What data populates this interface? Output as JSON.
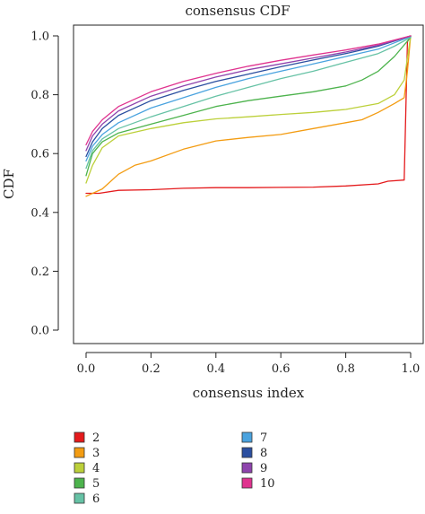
{
  "chart_data": {
    "type": "line",
    "title": "consensus CDF",
    "xlabel": "consensus index",
    "ylabel": "CDF",
    "xlim": [
      0,
      1
    ],
    "ylim": [
      0,
      1
    ],
    "x_ticks": [
      "0.0",
      "0.2",
      "0.4",
      "0.6",
      "0.8",
      "1.0"
    ],
    "y_ticks": [
      "0.0",
      "0.2",
      "0.4",
      "0.6",
      "0.8",
      "1.0"
    ],
    "grid": false,
    "legend_position": "bottom",
    "series": [
      {
        "name": "2",
        "color": "#e41a1c",
        "points": [
          [
            0.0,
            0.465
          ],
          [
            0.04,
            0.465
          ],
          [
            0.1,
            0.475
          ],
          [
            0.2,
            0.477
          ],
          [
            0.3,
            0.482
          ],
          [
            0.4,
            0.484
          ],
          [
            0.5,
            0.484
          ],
          [
            0.6,
            0.485
          ],
          [
            0.7,
            0.486
          ],
          [
            0.8,
            0.49
          ],
          [
            0.9,
            0.497
          ],
          [
            0.93,
            0.506
          ],
          [
            0.98,
            0.51
          ],
          [
            0.99,
            0.98
          ],
          [
            1.0,
            1.0
          ]
        ]
      },
      {
        "name": "3",
        "color": "#f39c12",
        "points": [
          [
            0.0,
            0.455
          ],
          [
            0.05,
            0.48
          ],
          [
            0.1,
            0.53
          ],
          [
            0.15,
            0.56
          ],
          [
            0.2,
            0.575
          ],
          [
            0.3,
            0.615
          ],
          [
            0.4,
            0.643
          ],
          [
            0.5,
            0.655
          ],
          [
            0.6,
            0.665
          ],
          [
            0.7,
            0.685
          ],
          [
            0.8,
            0.705
          ],
          [
            0.85,
            0.715
          ],
          [
            0.9,
            0.74
          ],
          [
            0.95,
            0.77
          ],
          [
            0.98,
            0.79
          ],
          [
            0.99,
            0.88
          ],
          [
            1.0,
            1.0
          ]
        ]
      },
      {
        "name": "4",
        "color": "#bcd03a",
        "points": [
          [
            0.0,
            0.5
          ],
          [
            0.02,
            0.56
          ],
          [
            0.05,
            0.62
          ],
          [
            0.1,
            0.66
          ],
          [
            0.2,
            0.685
          ],
          [
            0.3,
            0.705
          ],
          [
            0.4,
            0.718
          ],
          [
            0.5,
            0.725
          ],
          [
            0.6,
            0.733
          ],
          [
            0.7,
            0.74
          ],
          [
            0.8,
            0.75
          ],
          [
            0.9,
            0.77
          ],
          [
            0.95,
            0.8
          ],
          [
            0.98,
            0.85
          ],
          [
            1.0,
            1.0
          ]
        ]
      },
      {
        "name": "5",
        "color": "#4db34d",
        "points": [
          [
            0.0,
            0.525
          ],
          [
            0.02,
            0.6
          ],
          [
            0.05,
            0.64
          ],
          [
            0.1,
            0.67
          ],
          [
            0.2,
            0.7
          ],
          [
            0.3,
            0.73
          ],
          [
            0.4,
            0.76
          ],
          [
            0.5,
            0.78
          ],
          [
            0.6,
            0.795
          ],
          [
            0.7,
            0.81
          ],
          [
            0.8,
            0.83
          ],
          [
            0.85,
            0.85
          ],
          [
            0.9,
            0.88
          ],
          [
            0.95,
            0.93
          ],
          [
            1.0,
            0.995
          ]
        ]
      },
      {
        "name": "6",
        "color": "#66c2a5",
        "points": [
          [
            0.0,
            0.55
          ],
          [
            0.02,
            0.61
          ],
          [
            0.05,
            0.65
          ],
          [
            0.1,
            0.685
          ],
          [
            0.2,
            0.725
          ],
          [
            0.3,
            0.76
          ],
          [
            0.4,
            0.795
          ],
          [
            0.5,
            0.825
          ],
          [
            0.6,
            0.855
          ],
          [
            0.7,
            0.88
          ],
          [
            0.8,
            0.91
          ],
          [
            0.9,
            0.94
          ],
          [
            0.95,
            0.965
          ],
          [
            1.0,
            0.995
          ]
        ]
      },
      {
        "name": "7",
        "color": "#4aa3df",
        "points": [
          [
            0.0,
            0.575
          ],
          [
            0.02,
            0.625
          ],
          [
            0.05,
            0.665
          ],
          [
            0.1,
            0.705
          ],
          [
            0.2,
            0.755
          ],
          [
            0.3,
            0.79
          ],
          [
            0.4,
            0.825
          ],
          [
            0.5,
            0.855
          ],
          [
            0.6,
            0.88
          ],
          [
            0.7,
            0.905
          ],
          [
            0.8,
            0.93
          ],
          [
            0.9,
            0.955
          ],
          [
            1.0,
            0.998
          ]
        ]
      },
      {
        "name": "8",
        "color": "#2b4fa0",
        "points": [
          [
            0.0,
            0.59
          ],
          [
            0.02,
            0.64
          ],
          [
            0.05,
            0.685
          ],
          [
            0.1,
            0.73
          ],
          [
            0.2,
            0.78
          ],
          [
            0.3,
            0.815
          ],
          [
            0.4,
            0.845
          ],
          [
            0.5,
            0.87
          ],
          [
            0.6,
            0.895
          ],
          [
            0.7,
            0.918
          ],
          [
            0.8,
            0.94
          ],
          [
            0.9,
            0.965
          ],
          [
            1.0,
            1.0
          ]
        ]
      },
      {
        "name": "9",
        "color": "#8e44ad",
        "points": [
          [
            0.0,
            0.61
          ],
          [
            0.02,
            0.66
          ],
          [
            0.05,
            0.7
          ],
          [
            0.1,
            0.745
          ],
          [
            0.2,
            0.795
          ],
          [
            0.3,
            0.83
          ],
          [
            0.4,
            0.86
          ],
          [
            0.5,
            0.885
          ],
          [
            0.6,
            0.905
          ],
          [
            0.7,
            0.925
          ],
          [
            0.8,
            0.945
          ],
          [
            0.9,
            0.968
          ],
          [
            1.0,
            1.0
          ]
        ]
      },
      {
        "name": "10",
        "color": "#e0338f",
        "points": [
          [
            0.0,
            0.63
          ],
          [
            0.02,
            0.675
          ],
          [
            0.05,
            0.715
          ],
          [
            0.1,
            0.76
          ],
          [
            0.2,
            0.81
          ],
          [
            0.3,
            0.845
          ],
          [
            0.4,
            0.873
          ],
          [
            0.5,
            0.897
          ],
          [
            0.6,
            0.917
          ],
          [
            0.7,
            0.935
          ],
          [
            0.8,
            0.952
          ],
          [
            0.9,
            0.972
          ],
          [
            1.0,
            1.0
          ]
        ]
      }
    ]
  }
}
